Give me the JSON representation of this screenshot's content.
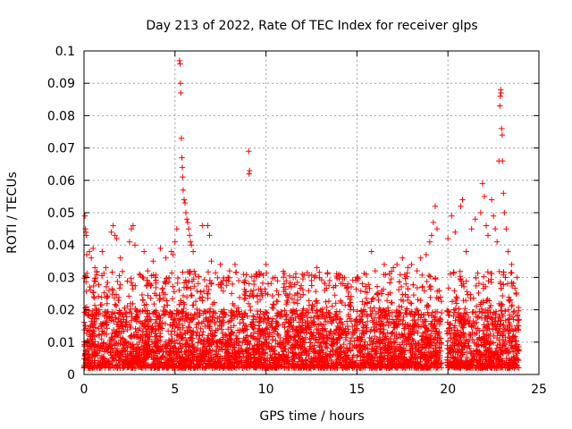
{
  "chart_data": {
    "type": "scatter",
    "title": "Day 213 of 2022, Rate Of TEC Index for receiver glps",
    "xlabel": "GPS time / hours",
    "ylabel": "ROTI / TECUs",
    "xlim": [
      0,
      25
    ],
    "ylim": [
      0,
      0.1
    ],
    "x_ticks": [
      0,
      5,
      10,
      15,
      20,
      25
    ],
    "y_ticks": [
      0,
      0.01,
      0.02,
      0.03,
      0.04,
      0.05,
      0.06,
      0.07,
      0.08,
      0.09,
      0.1
    ],
    "x_tick_labels": [
      "0",
      "5",
      "10",
      "15",
      "20",
      "25"
    ],
    "y_tick_labels": [
      "0",
      "0.01",
      "0.02",
      "0.03",
      "0.04",
      "0.05",
      "0.06",
      "0.07",
      "0.08",
      "0.09",
      "0.1"
    ],
    "grid": true,
    "legend": "none",
    "marker": "+",
    "color": "#ff0000",
    "data_window_hours": [
      0,
      23.9
    ],
    "data_gaps_hours": [
      [
        19.65,
        19.95
      ]
    ],
    "dense_band": [
      0.002,
      0.02
    ],
    "points": [
      [
        0.05,
        0.049
      ],
      [
        0.08,
        0.045
      ],
      [
        0.1,
        0.044
      ],
      [
        0.12,
        0.043
      ],
      [
        0.15,
        0.037
      ],
      [
        0.3,
        0.038
      ],
      [
        0.4,
        0.036
      ],
      [
        0.5,
        0.039
      ],
      [
        0.6,
        0.033
      ],
      [
        1.0,
        0.038
      ],
      [
        1.2,
        0.033
      ],
      [
        1.5,
        0.044
      ],
      [
        1.6,
        0.046
      ],
      [
        1.7,
        0.043
      ],
      [
        1.8,
        0.042
      ],
      [
        2.0,
        0.036
      ],
      [
        2.5,
        0.041
      ],
      [
        2.6,
        0.045
      ],
      [
        2.7,
        0.046
      ],
      [
        2.8,
        0.04
      ],
      [
        3.3,
        0.038
      ],
      [
        3.5,
        0.032
      ],
      [
        3.8,
        0.035
      ],
      [
        4.2,
        0.039
      ],
      [
        4.5,
        0.036
      ],
      [
        4.8,
        0.038
      ],
      [
        4.9,
        0.037
      ],
      [
        5.0,
        0.041
      ],
      [
        5.1,
        0.045
      ],
      [
        5.25,
        0.097
      ],
      [
        5.28,
        0.096
      ],
      [
        5.3,
        0.09
      ],
      [
        5.32,
        0.087
      ],
      [
        5.35,
        0.073
      ],
      [
        5.38,
        0.067
      ],
      [
        5.4,
        0.064
      ],
      [
        5.42,
        0.061
      ],
      [
        5.45,
        0.057
      ],
      [
        5.5,
        0.054
      ],
      [
        5.55,
        0.053
      ],
      [
        5.6,
        0.05
      ],
      [
        5.65,
        0.048
      ],
      [
        5.7,
        0.047
      ],
      [
        5.75,
        0.045
      ],
      [
        5.8,
        0.043
      ],
      [
        5.85,
        0.041
      ],
      [
        5.9,
        0.04
      ],
      [
        6.0,
        0.038
      ],
      [
        6.5,
        0.046
      ],
      [
        6.8,
        0.046
      ],
      [
        6.9,
        0.043
      ],
      [
        7.0,
        0.035
      ],
      [
        7.5,
        0.034
      ],
      [
        8.0,
        0.032
      ],
      [
        8.3,
        0.034
      ],
      [
        8.5,
        0.029
      ],
      [
        9.05,
        0.069
      ],
      [
        9.07,
        0.062
      ],
      [
        9.1,
        0.063
      ],
      [
        9.5,
        0.031
      ],
      [
        10.0,
        0.034
      ],
      [
        10.5,
        0.03
      ],
      [
        11.0,
        0.028
      ],
      [
        11.5,
        0.03
      ],
      [
        12.0,
        0.031
      ],
      [
        12.5,
        0.029
      ],
      [
        12.8,
        0.033
      ],
      [
        13.5,
        0.029
      ],
      [
        14.0,
        0.031
      ],
      [
        14.5,
        0.028
      ],
      [
        15.0,
        0.03
      ],
      [
        15.5,
        0.031
      ],
      [
        15.8,
        0.038
      ],
      [
        16.0,
        0.032
      ],
      [
        16.5,
        0.034
      ],
      [
        17.0,
        0.033
      ],
      [
        17.2,
        0.034
      ],
      [
        17.5,
        0.036
      ],
      [
        17.8,
        0.033
      ],
      [
        18.0,
        0.034
      ],
      [
        18.3,
        0.032
      ],
      [
        18.5,
        0.036
      ],
      [
        18.8,
        0.037
      ],
      [
        19.0,
        0.041
      ],
      [
        19.1,
        0.043
      ],
      [
        19.2,
        0.047
      ],
      [
        19.3,
        0.052
      ],
      [
        19.4,
        0.045
      ],
      [
        20.0,
        0.042
      ],
      [
        20.2,
        0.049
      ],
      [
        20.4,
        0.044
      ],
      [
        20.7,
        0.052
      ],
      [
        20.8,
        0.054
      ],
      [
        21.0,
        0.038
      ],
      [
        21.3,
        0.045
      ],
      [
        21.5,
        0.048
      ],
      [
        21.8,
        0.05
      ],
      [
        21.9,
        0.059
      ],
      [
        22.0,
        0.055
      ],
      [
        22.1,
        0.046
      ],
      [
        22.2,
        0.043
      ],
      [
        22.4,
        0.054
      ],
      [
        22.5,
        0.049
      ],
      [
        22.6,
        0.045
      ],
      [
        22.7,
        0.041
      ],
      [
        22.8,
        0.066
      ],
      [
        22.85,
        0.083
      ],
      [
        22.88,
        0.086
      ],
      [
        22.9,
        0.088
      ],
      [
        22.92,
        0.087
      ],
      [
        22.95,
        0.076
      ],
      [
        22.98,
        0.074
      ],
      [
        23.0,
        0.066
      ],
      [
        23.05,
        0.056
      ],
      [
        23.1,
        0.05
      ],
      [
        23.2,
        0.045
      ],
      [
        23.3,
        0.038
      ],
      [
        23.5,
        0.034
      ],
      [
        23.8,
        0.03
      ]
    ]
  }
}
